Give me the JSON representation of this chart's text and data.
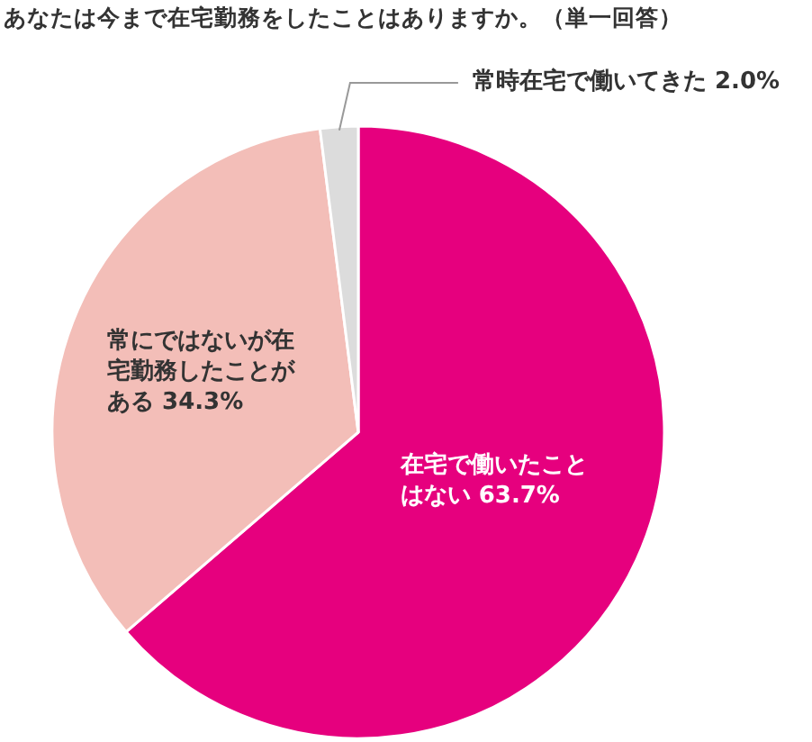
{
  "chart_data": {
    "type": "pie",
    "title": "あなたは今まで在宅勤務をしたことはありますか。（単一回答）",
    "categories": [
      "在宅で働いたことはない",
      "常にではないが在宅勤務したことがある",
      "常時在宅で働いてきた"
    ],
    "values": [
      63.7,
      34.3,
      2.0
    ],
    "colors": [
      "#e6007e",
      "#f3beb8",
      "#dcdcdc"
    ],
    "value_labels": [
      "63.7%",
      "34.3%",
      "2.0%"
    ]
  }
}
